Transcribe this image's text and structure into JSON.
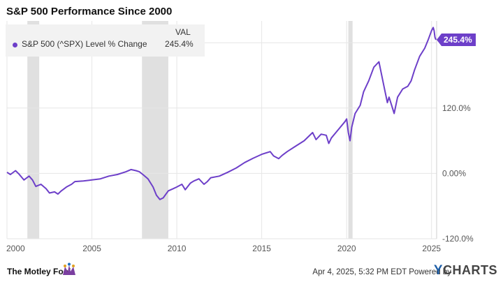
{
  "title": "S&P 500 Performance Since 2000",
  "legend": {
    "value_header": "VAL",
    "series_name": "S&P 500 (^SPX) Level % Change",
    "series_value": "245.4%"
  },
  "colors": {
    "series": "#6d3fc9",
    "recession": "#e0e0e0",
    "grid": "#e6e6e6",
    "axis_text": "#555555"
  },
  "footer": {
    "logo_text": "The Motley Fool.",
    "timestamp": "Apr 4, 2025, 5:32 PM EDT Powered by",
    "brand": "CHARTS",
    "brand_initial": "Y"
  },
  "chart_data": {
    "type": "line",
    "title": "S&P 500 Performance Since 2000",
    "xlabel": "",
    "ylabel": "",
    "xlim": [
      2000,
      2025.3
    ],
    "ylim": [
      -120,
      280
    ],
    "x_ticks": [
      2000,
      2005,
      2010,
      2015,
      2020,
      2025
    ],
    "y_ticks": [
      120,
      0,
      -120
    ],
    "y_tick_labels": [
      "120.0%",
      "0.00%",
      "-120.0%"
    ],
    "last_value_label": "245.4%",
    "last_value": 245.4,
    "recessions": [
      [
        2001.2,
        2001.9
      ],
      [
        2007.95,
        2009.5
      ],
      [
        2020.1,
        2020.35
      ]
    ],
    "series": [
      {
        "name": "S&P 500 (^SPX) Level % Change",
        "x": [
          2000.0,
          2000.2,
          2000.5,
          2000.7,
          2001.0,
          2001.3,
          2001.5,
          2001.7,
          2002.0,
          2002.3,
          2002.5,
          2002.8,
          2003.0,
          2003.2,
          2003.5,
          2003.8,
          2004.0,
          2004.5,
          2005.0,
          2005.5,
          2006.0,
          2006.5,
          2007.0,
          2007.3,
          2007.6,
          2007.8,
          2008.0,
          2008.3,
          2008.6,
          2008.8,
          2009.0,
          2009.2,
          2009.5,
          2009.8,
          2010.0,
          2010.3,
          2010.5,
          2010.8,
          2011.0,
          2011.3,
          2011.6,
          2011.8,
          2012.0,
          2012.5,
          2013.0,
          2013.5,
          2014.0,
          2014.5,
          2015.0,
          2015.5,
          2015.7,
          2016.0,
          2016.2,
          2016.5,
          2017.0,
          2017.5,
          2018.0,
          2018.2,
          2018.5,
          2018.8,
          2018.95,
          2019.1,
          2019.5,
          2019.9,
          2020.0,
          2020.1,
          2020.2,
          2020.3,
          2020.5,
          2020.8,
          2021.0,
          2021.3,
          2021.6,
          2021.9,
          2022.0,
          2022.2,
          2022.4,
          2022.5,
          2022.7,
          2022.8,
          2023.0,
          2023.3,
          2023.6,
          2023.8,
          2024.0,
          2024.3,
          2024.6,
          2024.8,
          2025.0,
          2025.1,
          2025.15,
          2025.2,
          2025.26
        ],
        "y": [
          2,
          -2,
          5,
          -1,
          -12,
          -5,
          -12,
          -24,
          -20,
          -28,
          -36,
          -34,
          -38,
          -32,
          -25,
          -20,
          -15,
          -14,
          -12,
          -10,
          -5,
          -2,
          3,
          7,
          5,
          3,
          -2,
          -10,
          -25,
          -40,
          -48,
          -45,
          -32,
          -28,
          -25,
          -20,
          -30,
          -18,
          -14,
          -10,
          -20,
          -15,
          -8,
          -5,
          2,
          10,
          20,
          28,
          35,
          40,
          32,
          27,
          33,
          40,
          50,
          60,
          75,
          62,
          72,
          70,
          55,
          65,
          80,
          95,
          100,
          75,
          60,
          85,
          110,
          125,
          150,
          170,
          195,
          205,
          190,
          160,
          130,
          140,
          120,
          110,
          140,
          155,
          160,
          170,
          190,
          215,
          230,
          245,
          262,
          268,
          262,
          250,
          245.4
        ]
      }
    ]
  }
}
